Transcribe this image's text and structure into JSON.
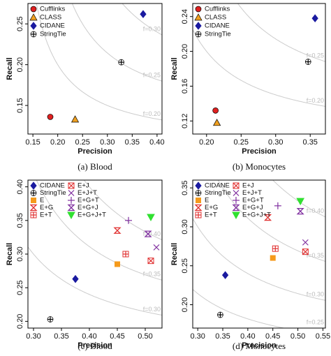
{
  "chart_data": [
    {
      "type": "scatter",
      "caption": "(a) Blood",
      "x_label": "Precision",
      "y_label": "Recall",
      "xlim": [
        0.14,
        0.41
      ],
      "ylim": [
        0.115,
        0.275
      ],
      "xticks": [
        0.15,
        {
          "value": 0.2,
          "label": "0.20"
        },
        0.25,
        {
          "value": 0.3,
          "label": "0.30"
        },
        0.35,
        {
          "value": 0.4,
          "label": "0.40"
        }
      ],
      "yticks": [
        0.15,
        {
          "value": 0.2,
          "label": "0.20"
        },
        0.25
      ],
      "f_curves": [
        {
          "value": 0.3,
          "label": "f=0.30"
        },
        {
          "value": 0.25,
          "label": "f=0.25"
        },
        {
          "value": 0.2,
          "label": "f=0.20"
        }
      ],
      "series": [
        {
          "name": "Cufflinks",
          "color": "#e02020",
          "marker": "circle",
          "x": [
            0.185
          ],
          "values": [
            0.136
          ]
        },
        {
          "name": "CLASS",
          "color": "#f0a020",
          "marker": "triangle",
          "x": [
            0.235
          ],
          "values": [
            0.133
          ]
        },
        {
          "name": "CIDANE",
          "color": "#1a1aa0",
          "marker": "diamond",
          "x": [
            0.372
          ],
          "values": [
            0.262
          ]
        },
        {
          "name": "StringTie",
          "color": "#ffffff",
          "marker": "circle-plus",
          "x": [
            0.328
          ],
          "values": [
            0.203
          ]
        }
      ]
    },
    {
      "type": "scatter",
      "caption": "(b) Monocytes",
      "x_label": "Precision",
      "y_label": "Recall",
      "xlim": [
        0.18,
        0.372
      ],
      "ylim": [
        0.105,
        0.255
      ],
      "xticks": [
        {
          "value": 0.2,
          "label": "0.20"
        },
        0.25,
        {
          "value": 0.3,
          "label": "0.30"
        },
        0.35
      ],
      "yticks": [
        0.12,
        0.16,
        {
          "value": 0.2,
          "label": "0.20"
        },
        0.24
      ],
      "f_curves": [
        {
          "value": 0.25,
          "label": "f=0.25"
        },
        {
          "value": 0.2,
          "label": "f=0.20"
        }
      ],
      "series": [
        {
          "name": "Cufflinks",
          "color": "#e02020",
          "marker": "circle",
          "x": [
            0.213
          ],
          "values": [
            0.132
          ]
        },
        {
          "name": "CLASS",
          "color": "#f0a020",
          "marker": "triangle",
          "x": [
            0.215
          ],
          "values": [
            0.118
          ]
        },
        {
          "name": "CIDANE",
          "color": "#1a1aa0",
          "marker": "diamond",
          "x": [
            0.357
          ],
          "values": [
            0.238
          ]
        },
        {
          "name": "StringTie",
          "color": "#ffffff",
          "marker": "circle-plus",
          "x": [
            0.347
          ],
          "values": [
            0.188
          ]
        }
      ]
    },
    {
      "type": "scatter",
      "caption": "(c) Blood",
      "x_label": "Precision",
      "y_label": "Recall",
      "xlim": [
        0.29,
        0.53
      ],
      "ylim": [
        0.19,
        0.41
      ],
      "xticks": [
        {
          "value": 0.3,
          "label": "0.30"
        },
        0.35,
        {
          "value": 0.4,
          "label": "0.40"
        },
        0.45,
        {
          "value": 0.5,
          "label": "0.50"
        }
      ],
      "yticks": [
        {
          "value": 0.2,
          "label": "0.20"
        },
        0.25,
        {
          "value": 0.3,
          "label": "0.30"
        },
        0.35,
        {
          "value": 0.4,
          "label": "0.40"
        }
      ],
      "f_curves": [
        {
          "value": 0.4,
          "label": "f=0.40"
        },
        {
          "value": 0.35,
          "label": "f=0.35"
        },
        {
          "value": 0.3,
          "label": "f=0.30"
        }
      ],
      "series": [
        {
          "name": "CIDANE",
          "color": "#1a1aa0",
          "marker": "diamond",
          "x": [
            0.375
          ],
          "values": [
            0.263
          ]
        },
        {
          "name": "StringTie",
          "color": "#ffffff",
          "marker": "circle-plus",
          "x": [
            0.33
          ],
          "values": [
            0.203
          ]
        },
        {
          "name": "E",
          "color": "#f59a1c",
          "marker": "square",
          "x": [
            0.45
          ],
          "values": [
            0.285
          ]
        },
        {
          "name": "E+G",
          "color": "#e03030",
          "marker": "hourglass",
          "x": [
            0.45
          ],
          "values": [
            0.335
          ]
        },
        {
          "name": "E+T",
          "color": "#e03030",
          "marker": "square-plus",
          "x": [
            0.465
          ],
          "values": [
            0.3
          ]
        },
        {
          "name": "E+J",
          "color": "#e03030",
          "marker": "square-x",
          "x": [
            0.51
          ],
          "values": [
            0.29
          ]
        },
        {
          "name": "E+J+T",
          "color": "#8030a0",
          "marker": "x",
          "x": [
            0.52
          ],
          "values": [
            0.31
          ]
        },
        {
          "name": "E+G+T",
          "color": "#8030a0",
          "marker": "plus",
          "x": [
            0.47
          ],
          "values": [
            0.35
          ]
        },
        {
          "name": "E+G+J",
          "color": "#8030a0",
          "marker": "hourglass",
          "x": [
            0.505
          ],
          "values": [
            0.33
          ]
        },
        {
          "name": "E+G+J+T",
          "color": "#30e030",
          "marker": "triangle-down",
          "x": [
            0.51
          ],
          "values": [
            0.355
          ]
        }
      ]
    },
    {
      "type": "scatter",
      "caption": "(d) Monocytes",
      "x_label": "Precision",
      "y_label": "Recall",
      "xlim": [
        0.29,
        0.555
      ],
      "ylim": [
        0.17,
        0.36
      ],
      "xticks": [
        {
          "value": 0.3,
          "label": "0.30"
        },
        0.35,
        {
          "value": 0.4,
          "label": "0.40"
        },
        0.45,
        {
          "value": 0.5,
          "label": "0.50"
        },
        0.55
      ],
      "yticks": [
        {
          "value": 0.2,
          "label": "0.20"
        },
        0.25,
        {
          "value": 0.3,
          "label": "0.30"
        },
        0.35
      ],
      "f_curves": [
        {
          "value": 0.4,
          "label": "f=0.40"
        },
        {
          "value": 0.35,
          "label": "f=0.35"
        },
        {
          "value": 0.3,
          "label": "f=0.30"
        },
        {
          "value": 0.25,
          "label": "f=0.25"
        }
      ],
      "series": [
        {
          "name": "CIDANE",
          "color": "#1a1aa0",
          "marker": "diamond",
          "x": [
            0.355
          ],
          "values": [
            0.238
          ]
        },
        {
          "name": "StringTie",
          "color": "#ffffff",
          "marker": "circle-plus",
          "x": [
            0.345
          ],
          "values": [
            0.187
          ]
        },
        {
          "name": "E",
          "color": "#f59a1c",
          "marker": "square",
          "x": [
            0.45
          ],
          "values": [
            0.26
          ]
        },
        {
          "name": "E+G",
          "color": "#e03030",
          "marker": "hourglass",
          "x": [
            0.44
          ],
          "values": [
            0.312
          ]
        },
        {
          "name": "E+T",
          "color": "#e03030",
          "marker": "square-plus",
          "x": [
            0.455
          ],
          "values": [
            0.272
          ]
        },
        {
          "name": "E+J",
          "color": "#e03030",
          "marker": "square-x",
          "x": [
            0.515
          ],
          "values": [
            0.268
          ]
        },
        {
          "name": "E+J+T",
          "color": "#8030a0",
          "marker": "x",
          "x": [
            0.515
          ],
          "values": [
            0.28
          ]
        },
        {
          "name": "E+G+T",
          "color": "#8030a0",
          "marker": "plus",
          "x": [
            0.46
          ],
          "values": [
            0.327
          ]
        },
        {
          "name": "E+G+J",
          "color": "#8030a0",
          "marker": "hourglass",
          "x": [
            0.505
          ],
          "values": [
            0.32
          ]
        },
        {
          "name": "E+G+J+T",
          "color": "#30e030",
          "marker": "triangle-down",
          "x": [
            0.505
          ],
          "values": [
            0.333
          ]
        }
      ]
    }
  ]
}
